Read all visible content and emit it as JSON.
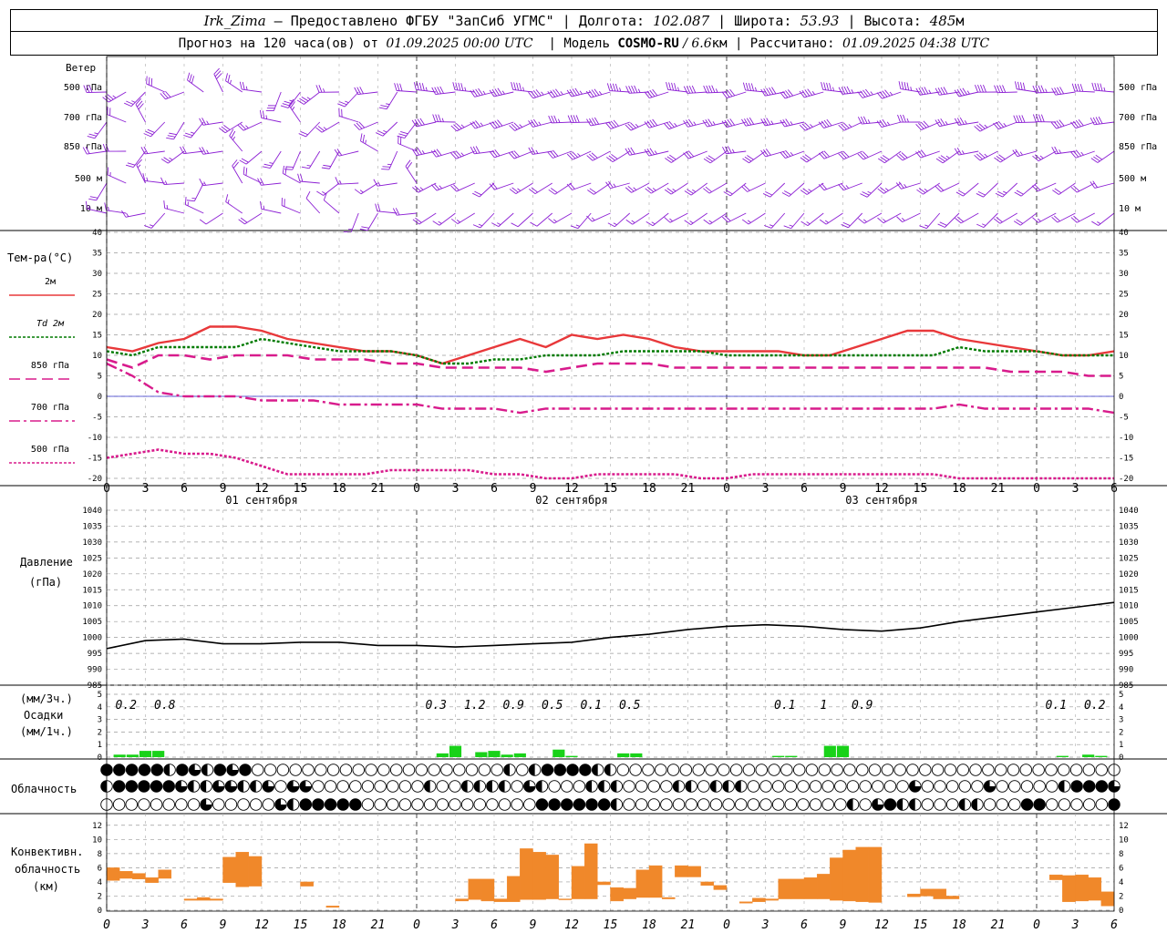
{
  "header": {
    "station": "Irk_Zima",
    "sep1": " – Предоставлено ФГБУ \"ЗапСиб УГМС\" | ",
    "lon_label": "Долгота: ",
    "lon": "102.087",
    "lat_label": " | Широта: ",
    "lat": "53.93",
    "alt_label": " | Высота: ",
    "alt": "485",
    "alt_unit": "м",
    "forecast_prefix": "Прогноз на 120 часа(ов) от ",
    "forecast_time": "01.09.2025 00:00 UTC",
    "model_label": "  | Модель ",
    "model": "COSMO-RU",
    "grid": " / 6.6",
    "grid_unit": "км",
    "calc_label": " | Рассчитано: ",
    "calc_time": "01.09.2025 04:38 UTC"
  },
  "panels": {
    "wind": {
      "title": "Ветер",
      "levels": [
        "500 гПа",
        "700 гПа",
        "850 гПа",
        "500 м",
        "10  м"
      ]
    },
    "temp": {
      "title": "Тем-ра(°С)",
      "legend": [
        "2м",
        "Td  2м",
        "850 гПа",
        "700 гПа",
        "500 гПа"
      ]
    },
    "pressure": {
      "title": "Давление",
      "unit": "(гПа)"
    },
    "precip": {
      "unit3": "(мм/3ч.)",
      "title": "Осадки",
      "unit1": "(мм/1ч.)"
    },
    "cloud": {
      "title": "Облачность"
    },
    "conv": {
      "title1": "Конвективн.",
      "title2": "облачность",
      "unit": "(км)"
    }
  },
  "colors": {
    "t2m": "#e8383a",
    "td": "#007a00",
    "t850": "#d81b8c",
    "t700": "#d81b8c",
    "t500": "#d81b8c",
    "pressure": "#000000",
    "wind": "#8c1fd4",
    "precip": "#19d219",
    "conv": "#f0882a",
    "zero": "#3333cc"
  },
  "chart_data": [
    {
      "type": "line",
      "name": "temperature",
      "x_hours": [
        0,
        2,
        4,
        6,
        8,
        10,
        12,
        14,
        16,
        18,
        20,
        22,
        24,
        26,
        28,
        30,
        32,
        34,
        36,
        38,
        40,
        42,
        44,
        46,
        48,
        50,
        52,
        54,
        56,
        58,
        60,
        62,
        64,
        66,
        68,
        70,
        72,
        74,
        76,
        78
      ],
      "xticks": [
        "0",
        "3",
        "6",
        "9",
        "12",
        "15",
        "18",
        "21"
      ],
      "day_labels": [
        "01 сентября",
        "02 сентября",
        "03 сентября"
      ],
      "ylim": [
        -20,
        40
      ],
      "yticks": [
        -20,
        -15,
        -10,
        -5,
        0,
        5,
        10,
        15,
        20,
        25,
        30,
        35,
        40
      ],
      "series": [
        {
          "name": "2м",
          "values": [
            12,
            11,
            13,
            14,
            17,
            17,
            16,
            14,
            13,
            12,
            11,
            11,
            10,
            8,
            10,
            12,
            14,
            12,
            15,
            14,
            15,
            14,
            12,
            11,
            11,
            11,
            11,
            10,
            10,
            12,
            14,
            16,
            16,
            14,
            13,
            12,
            11,
            10,
            10,
            11
          ]
        },
        {
          "name": "Td  2м",
          "values": [
            11,
            10,
            12,
            12,
            12,
            12,
            14,
            13,
            12,
            11,
            11,
            11,
            10,
            8,
            8,
            9,
            9,
            10,
            10,
            10,
            11,
            11,
            11,
            11,
            10,
            10,
            10,
            10,
            10,
            10,
            10,
            10,
            10,
            12,
            11,
            11,
            11,
            10,
            10,
            10
          ]
        },
        {
          "name": "850 гПа",
          "values": [
            9,
            7,
            10,
            10,
            9,
            10,
            10,
            10,
            9,
            9,
            9,
            8,
            8,
            7,
            7,
            7,
            7,
            6,
            7,
            8,
            8,
            8,
            7,
            7,
            7,
            7,
            7,
            7,
            7,
            7,
            7,
            7,
            7,
            7,
            7,
            6,
            6,
            6,
            5,
            5
          ]
        },
        {
          "name": "700 гПа",
          "values": [
            8,
            5,
            1,
            0,
            0,
            0,
            -1,
            -1,
            -1,
            -2,
            -2,
            -2,
            -2,
            -3,
            -3,
            -3,
            -4,
            -3,
            -3,
            -3,
            -3,
            -3,
            -3,
            -3,
            -3,
            -3,
            -3,
            -3,
            -3,
            -3,
            -3,
            -3,
            -3,
            -2,
            -3,
            -3,
            -3,
            -3,
            -3,
            -4
          ]
        },
        {
          "name": "500 гПа",
          "values": [
            -15,
            -14,
            -13,
            -14,
            -14,
            -15,
            -17,
            -19,
            -19,
            -19,
            -19,
            -18,
            -18,
            -18,
            -18,
            -19,
            -19,
            -20,
            -20,
            -19,
            -19,
            -19,
            -19,
            -20,
            -20,
            -19,
            -19,
            -19,
            -19,
            -19,
            -19,
            -19,
            -19,
            -20,
            -20,
            -20,
            -21,
            -21,
            -21,
            -21
          ]
        }
      ]
    },
    {
      "type": "line",
      "name": "pressure",
      "ylim": [
        985,
        1040
      ],
      "yticks": [
        985,
        990,
        995,
        1000,
        1005,
        1010,
        1015,
        1020,
        1025,
        1030,
        1035,
        1040
      ],
      "x_hours": [
        0,
        3,
        6,
        9,
        12,
        15,
        18,
        21,
        24,
        27,
        30,
        33,
        36,
        39,
        42,
        45,
        48,
        51,
        54,
        57,
        60,
        63,
        66,
        69,
        72,
        75,
        78
      ],
      "values": [
        996.5,
        999,
        999.5,
        998,
        998,
        998.5,
        998.5,
        997.5,
        997.5,
        997,
        997.5,
        998,
        998.5,
        1000,
        1001,
        1002.5,
        1003.5,
        1004,
        1003.5,
        1002.5,
        1002,
        1003,
        1005,
        1006.5,
        1008,
        1009.5,
        1011
      ]
    },
    {
      "type": "bar",
      "name": "precipitation",
      "ylim": [
        0,
        5
      ],
      "yticks": [
        0,
        1,
        2,
        3,
        4,
        5
      ],
      "labels_3h": [
        {
          "hour": 1.5,
          "text": "0.2"
        },
        {
          "hour": 4.5,
          "text": "0.8"
        },
        {
          "hour": 25.5,
          "text": "0.3"
        },
        {
          "hour": 28.5,
          "text": "1.2"
        },
        {
          "hour": 31.5,
          "text": "0.9"
        },
        {
          "hour": 34.5,
          "text": "0.5"
        },
        {
          "hour": 37.5,
          "text": "0.1"
        },
        {
          "hour": 40.5,
          "text": "0.5"
        },
        {
          "hour": 52.5,
          "text": "0.1"
        },
        {
          "hour": 55.5,
          "text": "1"
        },
        {
          "hour": 58.5,
          "text": "0.9"
        },
        {
          "hour": 73.5,
          "text": "0.1"
        },
        {
          "hour": 76.5,
          "text": "0.2"
        }
      ],
      "bars_1h": [
        {
          "hour": 1,
          "value": 0.2
        },
        {
          "hour": 2,
          "value": 0.2
        },
        {
          "hour": 3,
          "value": 0.5
        },
        {
          "hour": 4,
          "value": 0.5
        },
        {
          "hour": 26,
          "value": 0.3
        },
        {
          "hour": 27,
          "value": 0.9
        },
        {
          "hour": 29,
          "value": 0.4
        },
        {
          "hour": 30,
          "value": 0.5
        },
        {
          "hour": 31,
          "value": 0.2
        },
        {
          "hour": 32,
          "value": 0.3
        },
        {
          "hour": 35,
          "value": 0.6
        },
        {
          "hour": 36,
          "value": 0.1
        },
        {
          "hour": 40,
          "value": 0.3
        },
        {
          "hour": 41,
          "value": 0.3
        },
        {
          "hour": 52,
          "value": 0.1
        },
        {
          "hour": 53,
          "value": 0.1
        },
        {
          "hour": 56,
          "value": 0.9
        },
        {
          "hour": 57,
          "value": 0.9
        },
        {
          "hour": 74,
          "value": 0.1
        },
        {
          "hour": 76,
          "value": 0.2
        },
        {
          "hour": 77,
          "value": 0.1
        }
      ]
    },
    {
      "type": "table",
      "name": "cloudiness",
      "rows": [
        "FFFFFHFTHFTFOOOOOOOOOOOOOOOOOOOOHOHFFFFHHOOOOOOOOOOOOOOOOOOOOOOOOOOOOOOOOOOOOOOOO",
        "HFFFFFTHHTTHHTOTTOOOOOOOOOHOOHHHHOTHOOOHHHOOOOHHOHHHOOOOOOOOOOOOOTOOOOOTOOOOOHFFFT",
        "OOOOOOOOTOOOOOTHFFFFFOOOOOOOOOOOOOOFFFFFFHOOOOOOOOOOOOOOOOOOHOTFHHOOOHHOOOFFOOOOOF"
      ]
    },
    {
      "type": "bar",
      "name": "convective_cloud",
      "ylim": [
        0,
        13
      ],
      "yticks": [
        0,
        2,
        4,
        6,
        8,
        10,
        12
      ],
      "bars": [
        {
          "hour": 0,
          "bottom": 4.2,
          "top": 6
        },
        {
          "hour": 1,
          "bottom": 4.5,
          "top": 5.5
        },
        {
          "hour": 2,
          "bottom": 4.4,
          "top": 5.2
        },
        {
          "hour": 3,
          "bottom": 3.9,
          "top": 4.6
        },
        {
          "hour": 4,
          "bottom": 4.5,
          "top": 5.7
        },
        {
          "hour": 6,
          "bottom": 1.4,
          "top": 1.6
        },
        {
          "hour": 7,
          "bottom": 1.4,
          "top": 1.8
        },
        {
          "hour": 8,
          "bottom": 1.4,
          "top": 1.6
        },
        {
          "hour": 9,
          "bottom": 3.9,
          "top": 7.5
        },
        {
          "hour": 10,
          "bottom": 3.3,
          "top": 8.2
        },
        {
          "hour": 11,
          "bottom": 3.4,
          "top": 7.6
        },
        {
          "hour": 15,
          "bottom": 3.4,
          "top": 4
        },
        {
          "hour": 17,
          "bottom": 0.4,
          "top": 0.6
        },
        {
          "hour": 27,
          "bottom": 1.3,
          "top": 1.6
        },
        {
          "hour": 28,
          "bottom": 1.5,
          "top": 4.4
        },
        {
          "hour": 29,
          "bottom": 1.3,
          "top": 4.4
        },
        {
          "hour": 30,
          "bottom": 1.2,
          "top": 1.6
        },
        {
          "hour": 31,
          "bottom": 1.2,
          "top": 4.8
        },
        {
          "hour": 32,
          "bottom": 1.5,
          "top": 8.7
        },
        {
          "hour": 33,
          "bottom": 1.5,
          "top": 8.2
        },
        {
          "hour": 34,
          "bottom": 1.6,
          "top": 7.8
        },
        {
          "hour": 35,
          "bottom": 1.6,
          "top": 1.6
        },
        {
          "hour": 36,
          "bottom": 1.6,
          "top": 6.2
        },
        {
          "hour": 37,
          "bottom": 1.6,
          "top": 9.4
        },
        {
          "hour": 38,
          "bottom": 3.6,
          "top": 4
        },
        {
          "hour": 39,
          "bottom": 1.3,
          "top": 3.2
        },
        {
          "hour": 40,
          "bottom": 1.6,
          "top": 3.1
        },
        {
          "hour": 41,
          "bottom": 1.8,
          "top": 5.7
        },
        {
          "hour": 42,
          "bottom": 1.8,
          "top": 6.3
        },
        {
          "hour": 43,
          "bottom": 1.6,
          "top": 1.8
        },
        {
          "hour": 44,
          "bottom": 4.7,
          "top": 6.3
        },
        {
          "hour": 45,
          "bottom": 4.7,
          "top": 6.2
        },
        {
          "hour": 46,
          "bottom": 3.5,
          "top": 4
        },
        {
          "hour": 47,
          "bottom": 2.9,
          "top": 3.5
        },
        {
          "hour": 49,
          "bottom": 1,
          "top": 1.2
        },
        {
          "hour": 50,
          "bottom": 1.2,
          "top": 1.7
        },
        {
          "hour": 51,
          "bottom": 1.4,
          "top": 1.6
        },
        {
          "hour": 52,
          "bottom": 1.6,
          "top": 4.4
        },
        {
          "hour": 53,
          "bottom": 1.6,
          "top": 4.4
        },
        {
          "hour": 54,
          "bottom": 1.6,
          "top": 4.6
        },
        {
          "hour": 55,
          "bottom": 1.6,
          "top": 5.1
        },
        {
          "hour": 56,
          "bottom": 1.4,
          "top": 7.4
        },
        {
          "hour": 57,
          "bottom": 1.3,
          "top": 8.5
        },
        {
          "hour": 58,
          "bottom": 1.2,
          "top": 8.9
        },
        {
          "hour": 59,
          "bottom": 1.1,
          "top": 8.9
        },
        {
          "hour": 62,
          "bottom": 1.9,
          "top": 2.3
        },
        {
          "hour": 63,
          "bottom": 2,
          "top": 3
        },
        {
          "hour": 64,
          "bottom": 1.6,
          "top": 3
        },
        {
          "hour": 65,
          "bottom": 1.6,
          "top": 2
        },
        {
          "hour": 73,
          "bottom": 4.3,
          "top": 5
        },
        {
          "hour": 74,
          "bottom": 1.2,
          "top": 4.9
        },
        {
          "hour": 75,
          "bottom": 1.3,
          "top": 5
        },
        {
          "hour": 76,
          "bottom": 1.4,
          "top": 4.6
        },
        {
          "hour": 77,
          "bottom": 0.6,
          "top": 2.6
        }
      ]
    }
  ]
}
